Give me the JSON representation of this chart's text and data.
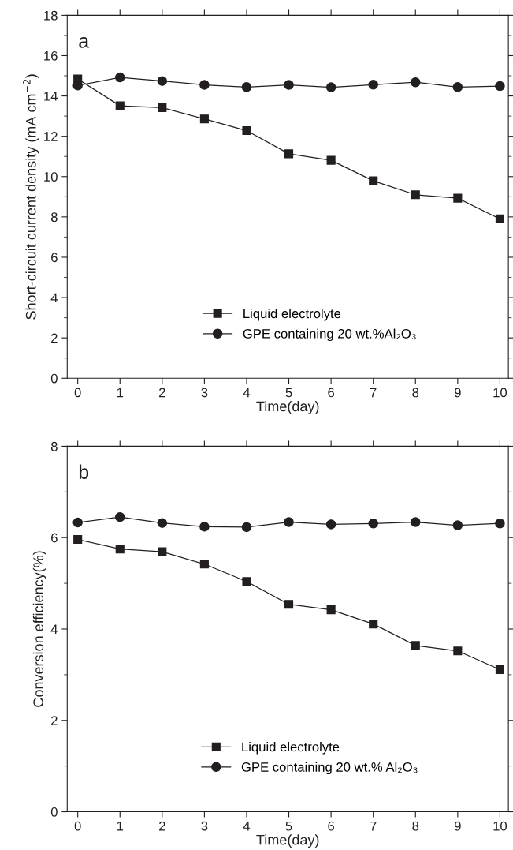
{
  "chart_data": [
    {
      "type": "line",
      "xlabel": "Time(day)",
      "ylabel": "Short-circuit current density (mA cm$^{−2}$)",
      "annotations": [
        "a"
      ],
      "x": [
        0,
        1,
        2,
        3,
        4,
        5,
        6,
        7,
        8,
        9,
        10
      ],
      "xlim": [
        -0.25,
        10.2
      ],
      "xticks": [
        0,
        1,
        2,
        3,
        4,
        5,
        6,
        7,
        8,
        9,
        10
      ],
      "ylim": [
        0,
        18
      ],
      "yticks": [
        0,
        2,
        4,
        6,
        8,
        10,
        12,
        14,
        16,
        18
      ],
      "grid": false,
      "legend": "bottom",
      "line_style": "solid",
      "series": [
        {
          "name": "Liquid electrolyte",
          "color": "#231f20",
          "marker": "square",
          "values": [
            14.84,
            13.51,
            13.42,
            12.86,
            12.28,
            11.13,
            10.81,
            9.79,
            9.1,
            8.93,
            7.9
          ]
        },
        {
          "name": "GPE containing 20 wt.%Al₂O₃",
          "color": "#231f20",
          "marker": "circle",
          "values": [
            14.52,
            14.92,
            14.74,
            14.55,
            14.44,
            14.55,
            14.43,
            14.56,
            14.68,
            14.44,
            14.49
          ]
        }
      ]
    },
    {
      "type": "line",
      "xlabel": "Time(day)",
      "ylabel": "Conversion efficiency(%)",
      "annotations": [
        "b"
      ],
      "x": [
        0,
        1,
        2,
        3,
        4,
        5,
        6,
        7,
        8,
        9,
        10
      ],
      "xlim": [
        -0.25,
        10.2
      ],
      "xticks": [
        0,
        1,
        2,
        3,
        4,
        5,
        6,
        7,
        8,
        9,
        10
      ],
      "ylim": [
        0,
        8
      ],
      "yticks": [
        0,
        2,
        4,
        6,
        8
      ],
      "grid": false,
      "legend": "bottom",
      "line_style": "solid",
      "series": [
        {
          "name": "Liquid electrolyte",
          "color": "#231f20",
          "marker": "square",
          "values": [
            5.96,
            5.75,
            5.69,
            5.42,
            5.04,
            4.54,
            4.42,
            4.11,
            3.64,
            3.52,
            3.11
          ]
        },
        {
          "name": "GPE containing 20 wt.% Al₂O₃",
          "color": "#231f20",
          "marker": "circle",
          "values": [
            6.33,
            6.45,
            6.32,
            6.24,
            6.23,
            6.34,
            6.29,
            6.31,
            6.34,
            6.27,
            6.31
          ]
        }
      ]
    }
  ]
}
